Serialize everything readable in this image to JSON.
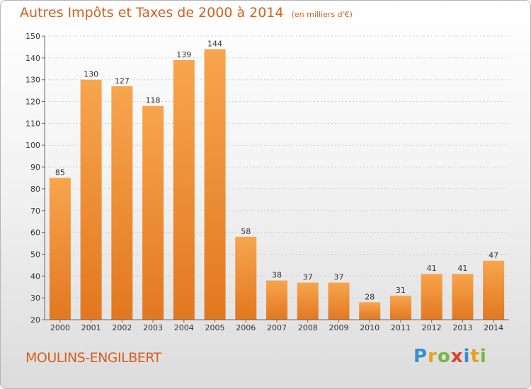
{
  "header": {
    "title": "Autres Impôts et Taxes de 2000 à 2014",
    "unit": "(en milliers d'€)"
  },
  "footer": {
    "commune": "MOULINS-ENGILBERT",
    "logo": [
      "P",
      "r",
      "o",
      "x",
      "i",
      "t",
      "i"
    ],
    "logo_colors": [
      "#3a8fd0",
      "#e8a020",
      "#74b843",
      "#e0402a",
      "#3a8fd0",
      "#e8a020",
      "#74b843"
    ]
  },
  "colors": {
    "bar_light": "#f7a54e",
    "bar_dark": "#e2781f",
    "axis": "#666666",
    "grid": "#d0d0d0",
    "text": "#333333",
    "accent": "#d4601e"
  },
  "chart_data": {
    "type": "bar",
    "categories": [
      "2000",
      "2001",
      "2002",
      "2003",
      "2004",
      "2005",
      "2006",
      "2007",
      "2008",
      "2009",
      "2010",
      "2011",
      "2012",
      "2013",
      "2014"
    ],
    "values": [
      85,
      130,
      127,
      118,
      139,
      144,
      58,
      38,
      37,
      37,
      28,
      31,
      41,
      41,
      47
    ],
    "ylim": [
      20,
      150
    ],
    "yticks": [
      20,
      30,
      40,
      50,
      60,
      70,
      80,
      90,
      100,
      110,
      120,
      130,
      140,
      150
    ],
    "grid": true,
    "data_labels": true
  }
}
